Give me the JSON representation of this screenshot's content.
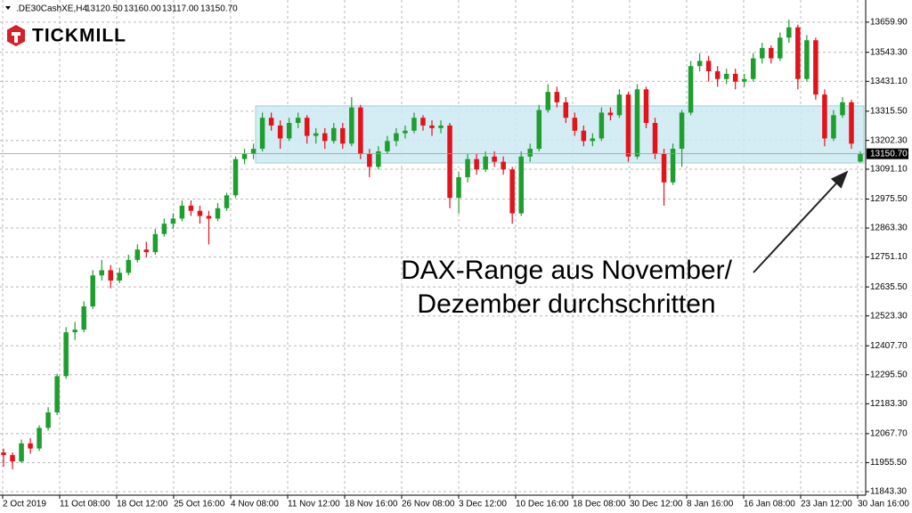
{
  "chart_data": {
    "type": "candlestick",
    "symbol": ".DE30CashXE,H4",
    "ohlc_labels": [
      "13120.50",
      "13160.00",
      "13117.00",
      "13150.70"
    ],
    "brand": "TICKMILL",
    "annotation": [
      "DAX-Range aus November/",
      "Dezember durchschritten"
    ],
    "up_color": "#1e9e2e",
    "down_color": "#e3121b",
    "grid": true,
    "ylim": [
      11829.5,
      13732
    ],
    "yticks": [
      {
        "value": 13659.9,
        "label": "13659.90"
      },
      {
        "value": 13543.3,
        "label": "13543.30"
      },
      {
        "value": 13431.1,
        "label": "13431.10"
      },
      {
        "value": 13315.5,
        "label": "13315.50"
      },
      {
        "value": 13202.3,
        "label": "13202.30"
      },
      {
        "value": 13091.1,
        "label": "13091.10"
      },
      {
        "value": 12975.5,
        "label": "12975.50"
      },
      {
        "value": 12863.3,
        "label": "12863.30"
      },
      {
        "value": 12751.1,
        "label": "12751.10"
      },
      {
        "value": 12635.5,
        "label": "12635.50"
      },
      {
        "value": 12523.3,
        "label": "12523.30"
      },
      {
        "value": 12407.7,
        "label": "12407.70"
      },
      {
        "value": 12295.5,
        "label": "12295.50"
      },
      {
        "value": 12183.3,
        "label": "12183.30"
      },
      {
        "value": 12067.7,
        "label": "12067.70"
      },
      {
        "value": 11955.5,
        "label": "11955.50"
      },
      {
        "value": 11843.3,
        "label": "11843.30"
      }
    ],
    "xticks": [
      "2 Oct 2019",
      "11 Oct 08:00",
      "18 Oct 12:00",
      "25 Oct 16:00",
      "4 Nov 08:00",
      "11 Nov 12:00",
      "18 Nov 16:00",
      "26 Nov 08:00",
      "3 Dec 12:00",
      "10 Dec 16:00",
      "18 Dec 08:00",
      "30 Dec 12:00",
      "8 Jan 16:00",
      "16 Jan 08:00",
      "23 Jan 12:00",
      "30 Jan 16:00"
    ],
    "current_price": {
      "value": 13150.7,
      "label": "13150.70"
    },
    "range_zone": {
      "low": 13115,
      "high": 13336,
      "color": "#cde9f1"
    },
    "open": [
      11995,
      11985,
      11960,
      12030,
      12010,
      12090,
      12150,
      12290,
      12460,
      12470,
      12560,
      12680,
      12700,
      12660,
      12690,
      12740,
      12780,
      12770,
      12840,
      12880,
      12900,
      12950,
      12930,
      12910,
      12900,
      12940,
      12990,
      13130,
      13150,
      13170,
      13290,
      13260,
      13210,
      13270,
      13290,
      13220,
      13230,
      13200,
      13250,
      13190,
      13330,
      13150,
      13100,
      13160,
      13200,
      13230,
      13240,
      13290,
      13260,
      13250,
      13260,
      12980,
      13060,
      13130,
      13090,
      13140,
      13120,
      13090,
      12920,
      13140,
      13170,
      13320,
      13390,
      13350,
      13290,
      13240,
      13200,
      13210,
      13310,
      13300,
      13380,
      13140,
      13400,
      13270,
      13150,
      13040,
      13170,
      13310,
      13490,
      13510,
      13470,
      13440,
      13460,
      13430,
      13440,
      13520,
      13560,
      13520,
      13600,
      13640,
      13440,
      13590,
      13380,
      13210,
      13300,
      13350,
      13120.5
    ],
    "high": [
      12010,
      11995,
      12045,
      12050,
      12100,
      12170,
      12300,
      12480,
      12500,
      12580,
      12700,
      12740,
      12720,
      12710,
      12760,
      12800,
      12810,
      12860,
      12900,
      12920,
      12970,
      12970,
      12950,
      12930,
      12960,
      13000,
      13140,
      13170,
      13190,
      13310,
      13310,
      13280,
      13290,
      13310,
      13300,
      13250,
      13250,
      13270,
      13270,
      13370,
      13340,
      13170,
      13180,
      13220,
      13250,
      13260,
      13310,
      13300,
      13280,
      13280,
      13270,
      13080,
      13150,
      13150,
      13160,
      13160,
      13140,
      13100,
      13160,
      13190,
      13340,
      13420,
      13410,
      13370,
      13310,
      13260,
      13230,
      13330,
      13330,
      13400,
      13390,
      13420,
      13410,
      13290,
      13170,
      13190,
      13320,
      13510,
      13540,
      13530,
      13490,
      13480,
      13480,
      13460,
      13540,
      13580,
      13570,
      13620,
      13670,
      13650,
      13610,
      13600,
      13400,
      13320,
      13370,
      13360,
      13160
    ],
    "low": [
      11940,
      11930,
      11955,
      11990,
      12000,
      12080,
      12140,
      12280,
      12430,
      12460,
      12550,
      12660,
      12630,
      12650,
      12680,
      12730,
      12750,
      12760,
      12830,
      12860,
      12890,
      12910,
      12880,
      12800,
      12890,
      12930,
      12980,
      13110,
      13130,
      13160,
      13240,
      13170,
      13200,
      13250,
      13190,
      13190,
      13170,
      13190,
      13170,
      13180,
      13130,
      13060,
      13090,
      13150,
      13180,
      13210,
      13230,
      13240,
      13220,
      13230,
      12940,
      12920,
      13040,
      13070,
      13080,
      13100,
      13070,
      12880,
      12910,
      13120,
      13160,
      13310,
      13330,
      13270,
      13220,
      13180,
      13180,
      13200,
      13280,
      13290,
      13120,
      13130,
      13250,
      13130,
      12950,
      13030,
      13100,
      13300,
      13470,
      13430,
      13410,
      13420,
      13400,
      13410,
      13430,
      13500,
      13500,
      13510,
      13580,
      13400,
      13430,
      13360,
      13180,
      13200,
      13290,
      13170,
      13117
    ],
    "close": [
      11985,
      11960,
      12030,
      12010,
      12090,
      12150,
      12290,
      12460,
      12470,
      12560,
      12680,
      12700,
      12660,
      12690,
      12740,
      12780,
      12770,
      12840,
      12880,
      12900,
      12950,
      12930,
      12910,
      12900,
      12940,
      12990,
      13130,
      13150,
      13170,
      13290,
      13260,
      13210,
      13270,
      13290,
      13220,
      13230,
      13200,
      13250,
      13190,
      13330,
      13150,
      13100,
      13160,
      13200,
      13230,
      13240,
      13290,
      13260,
      13250,
      13260,
      12980,
      13060,
      13130,
      13090,
      13140,
      13120,
      13090,
      12920,
      13140,
      13170,
      13320,
      13390,
      13350,
      13290,
      13240,
      13200,
      13210,
      13310,
      13300,
      13380,
      13140,
      13400,
      13270,
      13150,
      13040,
      13170,
      13310,
      13490,
      13510,
      13470,
      13440,
      13460,
      13430,
      13440,
      13520,
      13560,
      13520,
      13600,
      13640,
      13440,
      13590,
      13380,
      13210,
      13300,
      13350,
      13190,
      13150.7
    ]
  }
}
